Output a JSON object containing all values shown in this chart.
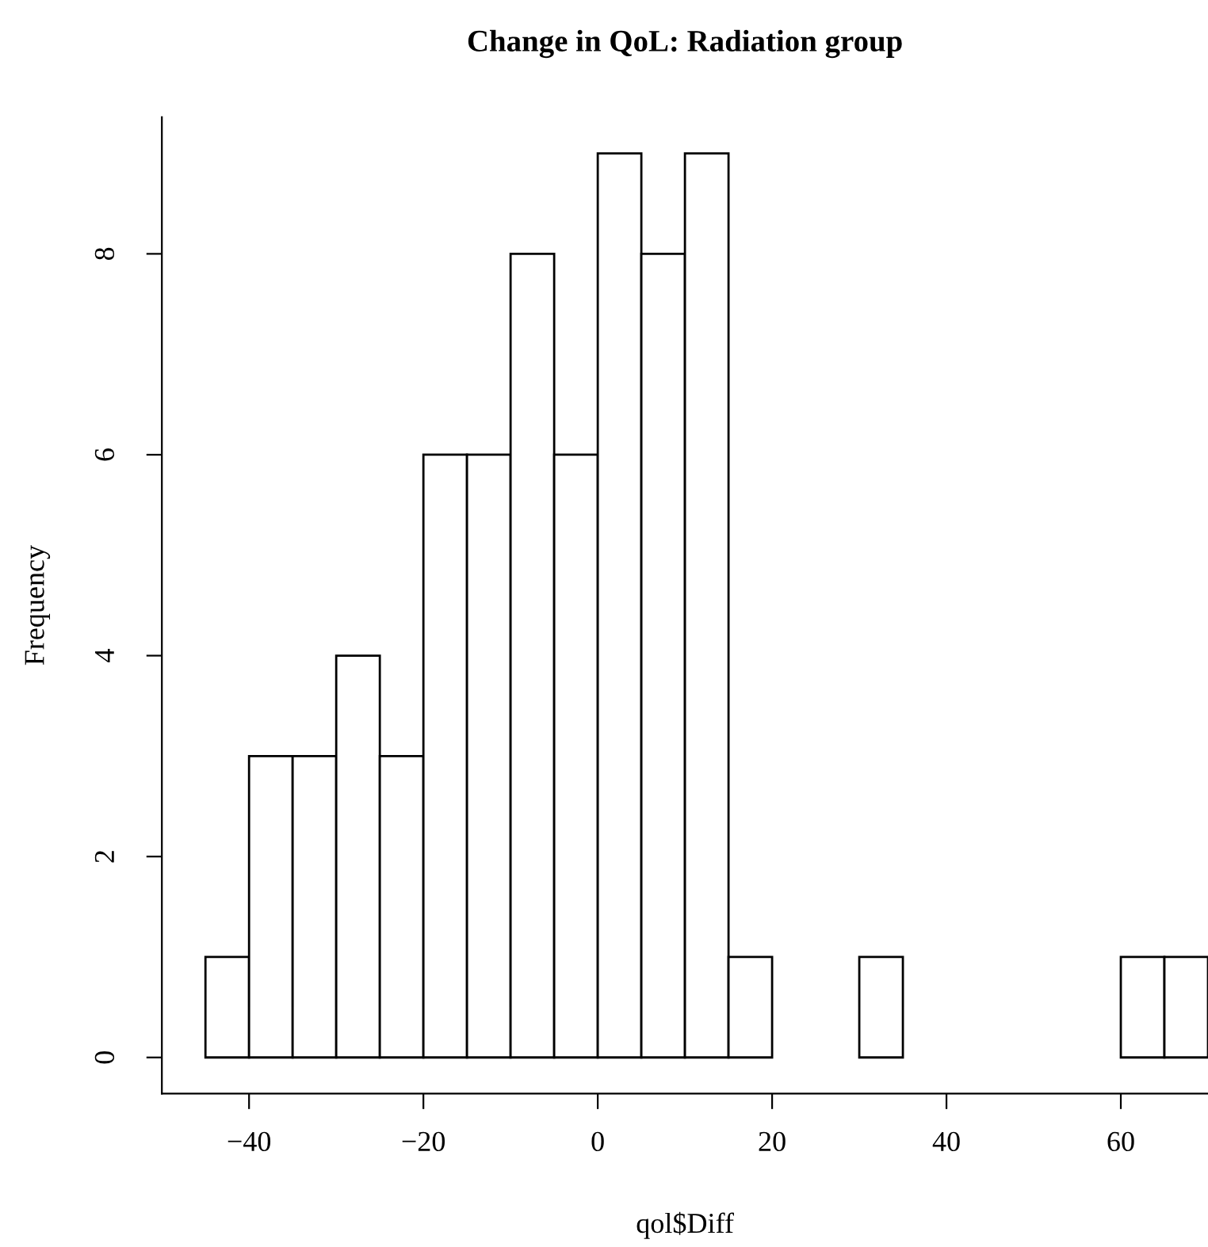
{
  "chart_data": {
    "type": "histogram",
    "title": "Change in QoL: Radiation group",
    "xlabel": "qol$Diff",
    "ylabel": "Frequency",
    "bins": [
      -45,
      -40,
      -35,
      -30,
      -25,
      -20,
      -15,
      -10,
      -5,
      0,
      5,
      10,
      15,
      20,
      25,
      30,
      35,
      40,
      45,
      50,
      55,
      60,
      65,
      70
    ],
    "values": [
      1,
      3,
      3,
      4,
      3,
      6,
      6,
      8,
      6,
      9,
      8,
      9,
      1,
      0,
      0,
      1,
      0,
      0,
      0,
      0,
      0,
      1,
      1
    ],
    "color": "#ffffff",
    "xlim": [
      -50,
      70
    ],
    "ylim": [
      -0.36,
      9.36
    ],
    "xticks": [
      -40,
      -20,
      0,
      20,
      40,
      60
    ],
    "yticks": [
      0,
      2,
      4,
      6,
      8
    ]
  }
}
